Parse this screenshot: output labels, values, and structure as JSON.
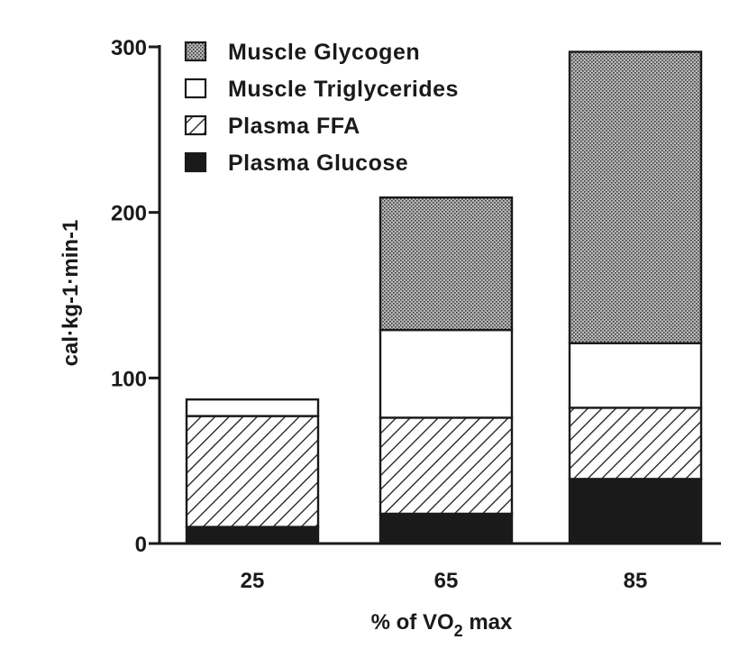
{
  "chart_data": {
    "type": "bar",
    "stacked": true,
    "title": "",
    "xlabel": {
      "prefix": "% of VO",
      "subscript": "2",
      "suffix": " max"
    },
    "ylabel": "cal·kg-1·min-1",
    "ylim": [
      0,
      300
    ],
    "yticks": [
      0,
      100,
      200,
      300
    ],
    "categories": [
      "25",
      "65",
      "85"
    ],
    "series": [
      {
        "name": "Plasma Glucose",
        "values": [
          10,
          18,
          39
        ],
        "pattern": "black"
      },
      {
        "name": "Plasma FFA",
        "values": [
          67,
          58,
          43
        ],
        "pattern": "hatch"
      },
      {
        "name": "Muscle Triglycerides",
        "values": [
          10,
          53,
          39
        ],
        "pattern": "white"
      },
      {
        "name": "Muscle Glycogen",
        "values": [
          0,
          80,
          176
        ],
        "pattern": "dots"
      }
    ],
    "legend": {
      "position": "top-left",
      "order": [
        "Muscle Glycogen",
        "Muscle Triglycerides",
        "Plasma FFA",
        "Plasma Glucose"
      ]
    },
    "grid": false,
    "colors": {
      "ink": "#1a1a1a",
      "dots_bg": "#b8b8b8"
    }
  }
}
